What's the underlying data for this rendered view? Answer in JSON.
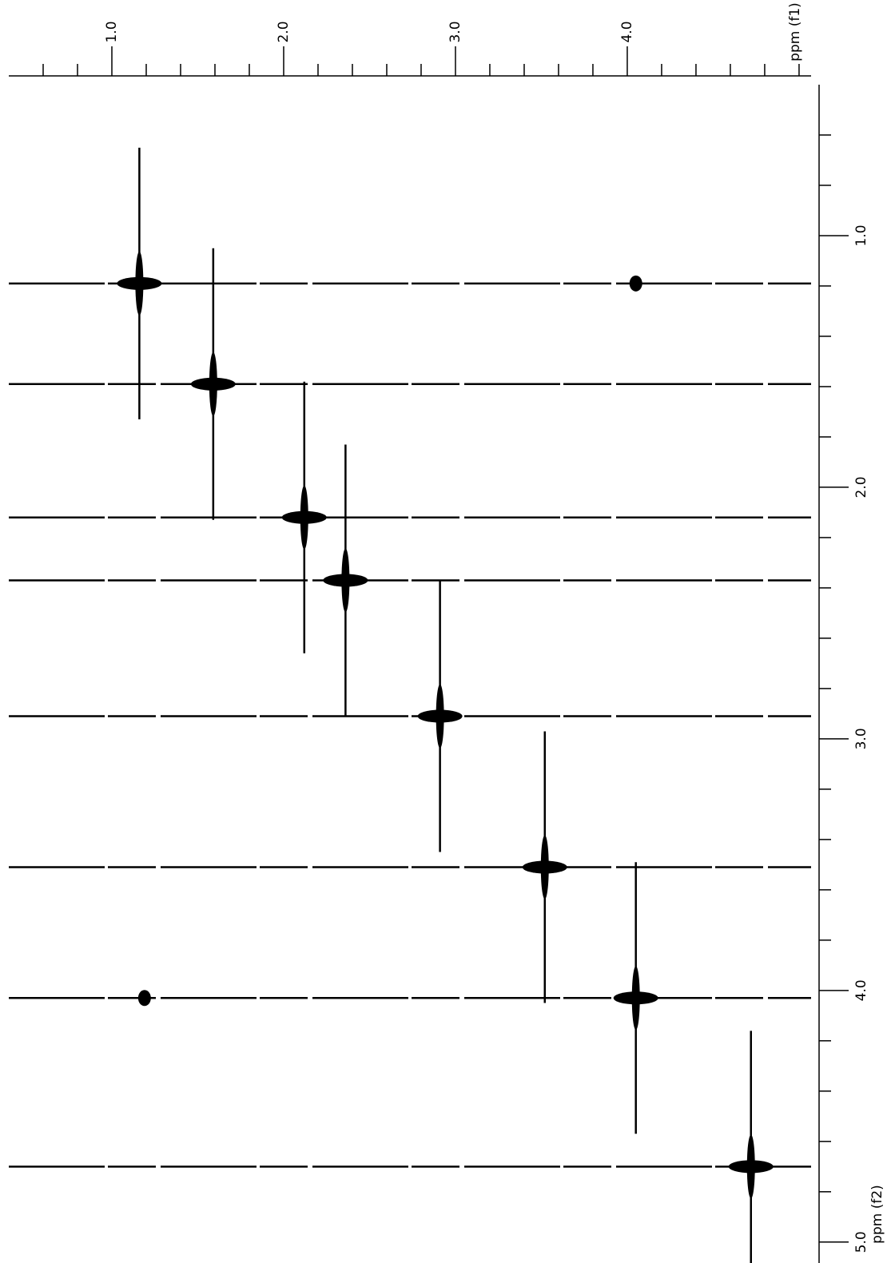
{
  "chart_data": {
    "type": "scatter",
    "x_label": "ppm (f1)",
    "y_label": "ppm (f2)",
    "xlim": [
      0.4,
      5.07
    ],
    "ylim": [
      0.4,
      5.08
    ],
    "xticks": [
      {
        "value": 1,
        "label": "1.0"
      },
      {
        "value": 2,
        "label": "2.0"
      },
      {
        "value": 3,
        "label": "3.0"
      },
      {
        "value": 4,
        "label": "4.0"
      }
    ],
    "yticks": [
      {
        "value": 1,
        "label": "1.0"
      },
      {
        "value": 2,
        "label": "2.0"
      },
      {
        "value": 3,
        "label": "3.0"
      },
      {
        "value": 4,
        "label": "4.0"
      },
      {
        "value": 5,
        "label": "5.0"
      }
    ],
    "xminorticks": [
      0.6,
      0.8,
      1.2,
      1.4,
      1.6,
      1.8,
      2.2,
      2.4,
      2.6,
      2.8,
      3.2,
      3.4,
      3.6,
      3.8,
      4.2,
      4.4,
      4.6,
      4.8,
      5.0
    ],
    "yminorticks": [
      0.6,
      0.8,
      1.2,
      1.4,
      1.6,
      1.8,
      2.2,
      2.4,
      2.6,
      2.8,
      3.2,
      3.4,
      3.6,
      3.8,
      4.2,
      4.4,
      4.6,
      4.8
    ],
    "series": [
      {
        "color": "#000000",
        "x": [
          1.16,
          2.36,
          2.91,
          3.52,
          4.05,
          4.72,
          4.05,
          1.19,
          1.59,
          2.12
        ],
        "values": [
          1.19,
          2.37,
          2.91,
          3.51,
          4.03,
          4.7,
          1.19,
          4.03,
          1.59,
          2.12
        ]
      }
    ]
  }
}
